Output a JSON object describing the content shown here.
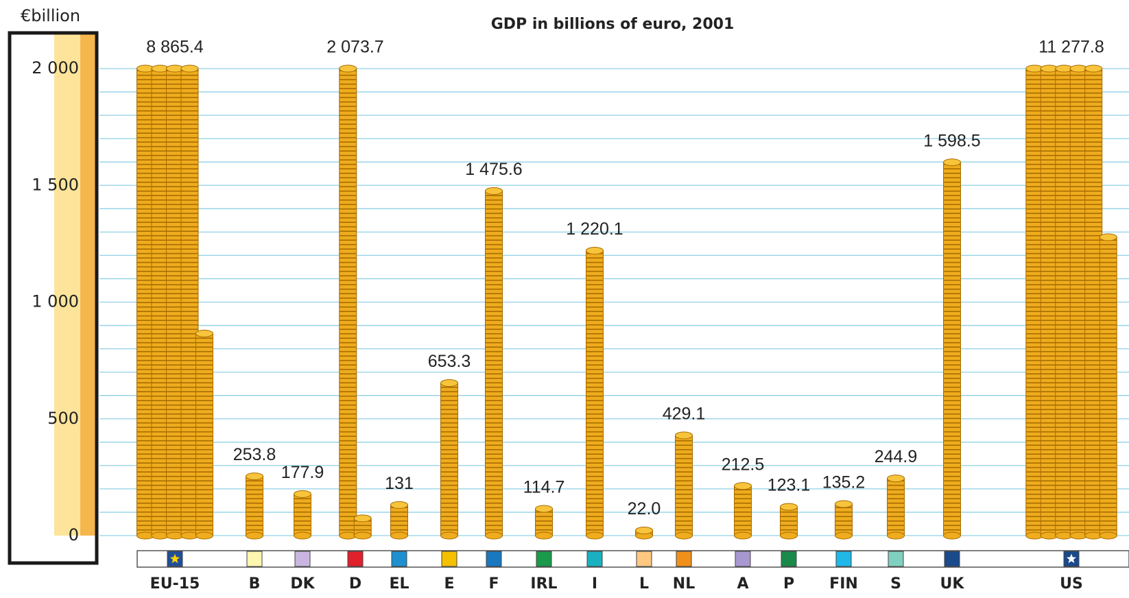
{
  "chart_data": {
    "type": "coin-stack",
    "title": "GDP in billions of euro, 2001",
    "y_label": "€billion",
    "categories": [
      "EU-15",
      "B",
      "DK",
      "D",
      "EL",
      "E",
      "F",
      "IRL",
      "I",
      "L",
      "NL",
      "A",
      "P",
      "FIN",
      "S",
      "UK",
      "US"
    ],
    "values": [
      8865.4,
      253.8,
      177.9,
      2073.7,
      131,
      653.3,
      1475.6,
      114.7,
      1220.1,
      22.0,
      429.1,
      212.5,
      123.1,
      135.2,
      244.9,
      1598.5,
      11277.8
    ],
    "value_labels": [
      "8 865.4",
      "253.8",
      "177.9",
      "2 073.7",
      "131",
      "653.3",
      "1 475.6",
      "114.7",
      "1 220.1",
      "22.0",
      "429.1",
      "212.5",
      "123.1",
      "135.2",
      "244.9",
      "1 598.5",
      "11 277.8"
    ],
    "flag_colors": [
      "#1f4e9a",
      "#fff6b0",
      "#c9b6e0",
      "#e0202a",
      "#1e90d0",
      "#f5c000",
      "#1a78c0",
      "#1a9a4a",
      "#1ab0c0",
      "#ffc880",
      "#f0901a",
      "#a898d0",
      "#1a8a4a",
      "#20b8e8",
      "#80d0c0",
      "#1a4a8a",
      "#1a4a8a"
    ],
    "color": "#eeac1e",
    "ylim": [
      0,
      2000
    ],
    "yticks": [
      0,
      500,
      {
        "value": 1000,
        "label": "1 000"
      },
      {
        "value": 1500,
        "label": "1 500"
      },
      {
        "value": 2000,
        "label": "2 000"
      }
    ],
    "grid_yticks": [
      0,
      100,
      200,
      300,
      400,
      500,
      600,
      700,
      800,
      900,
      1000,
      1100,
      1200,
      1300,
      1400,
      1500,
      1600,
      1700,
      1800,
      1900,
      2000
    ],
    "grid": true
  }
}
